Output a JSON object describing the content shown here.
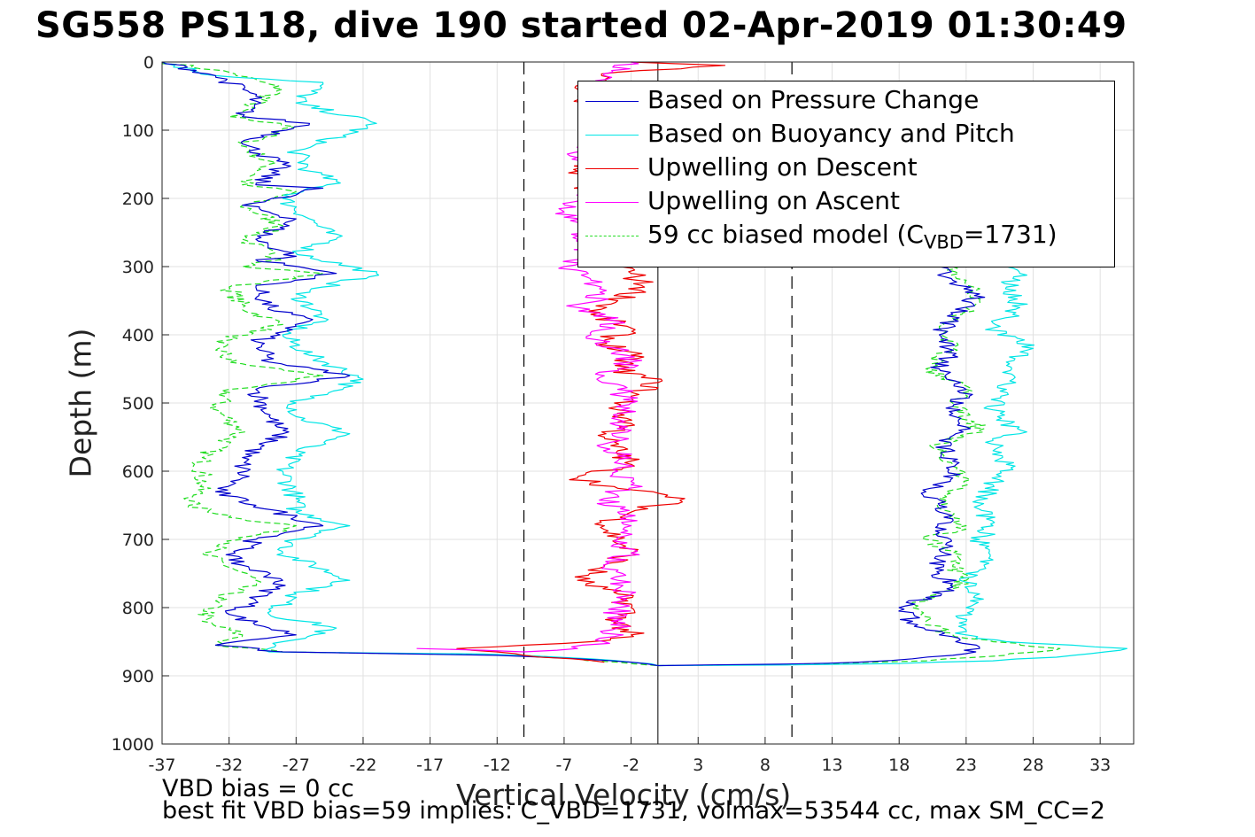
{
  "title": "SG558 PS118, dive 190 started 02-Apr-2019 01:30:49",
  "footer": {
    "line1": "VBD bias = 0 cc",
    "line2": "best fit VBD bias=59 implies: C_VBD=1731, volmax=53544 cc, max SM_CC=2"
  },
  "chart_data": {
    "type": "line",
    "xlabel": "Vertical Velocity (cm/s)",
    "ylabel": "Depth (m)",
    "xlim": [
      -37,
      35.5
    ],
    "ylim": [
      0,
      1000
    ],
    "y_reversed": true,
    "x_ticks": [
      -37,
      -32,
      -27,
      -22,
      -17,
      -12,
      -7,
      -2,
      3,
      8,
      13,
      18,
      23,
      28,
      33
    ],
    "y_ticks": [
      0,
      100,
      200,
      300,
      400,
      500,
      600,
      700,
      800,
      900,
      1000
    ],
    "grid": true,
    "legend_position": "top-right",
    "reference_lines": {
      "dashed_x": [
        -10,
        10
      ],
      "solid_x": [
        0
      ]
    },
    "series": [
      {
        "name": "Based on Pressure Change",
        "color": "#0000cc",
        "descent": [
          [
            -37,
            0
          ],
          [
            -33,
            20
          ],
          [
            -30,
            50
          ],
          [
            -31,
            80
          ],
          [
            -26,
            90
          ],
          [
            -31,
            120
          ],
          [
            -28,
            150
          ],
          [
            -30,
            180
          ],
          [
            -25,
            185
          ],
          [
            -31,
            210
          ],
          [
            -27,
            230
          ],
          [
            -30,
            260
          ],
          [
            -27,
            285
          ],
          [
            -30,
            290
          ],
          [
            -24,
            310
          ],
          [
            -30,
            330
          ],
          [
            -29,
            360
          ],
          [
            -26,
            380
          ],
          [
            -30,
            410
          ],
          [
            -29,
            440
          ],
          [
            -23,
            460
          ],
          [
            -30,
            480
          ],
          [
            -29,
            520
          ],
          [
            -28,
            545
          ],
          [
            -31,
            580
          ],
          [
            -31,
            610
          ],
          [
            -33,
            630
          ],
          [
            -30,
            650
          ],
          [
            -25,
            680
          ],
          [
            -30,
            700
          ],
          [
            -32,
            730
          ],
          [
            -28,
            760
          ],
          [
            -30,
            790
          ],
          [
            -32,
            810
          ],
          [
            -29,
            830
          ],
          [
            -27,
            840
          ],
          [
            -33,
            855
          ],
          [
            -28,
            865
          ],
          [
            -12,
            870
          ],
          [
            -6,
            875
          ],
          [
            -2,
            880
          ],
          [
            0,
            885
          ]
        ],
        "ascent": [
          [
            0,
            885
          ],
          [
            9,
            883
          ],
          [
            15,
            880
          ],
          [
            19,
            875
          ],
          [
            22,
            870
          ],
          [
            24,
            860
          ],
          [
            21,
            840
          ],
          [
            19,
            820
          ],
          [
            18,
            800
          ],
          [
            20,
            785
          ],
          [
            22,
            770
          ],
          [
            21,
            750
          ],
          [
            21,
            730
          ],
          [
            22,
            710
          ],
          [
            21,
            690
          ],
          [
            22,
            670
          ],
          [
            21,
            650
          ],
          [
            20,
            630
          ],
          [
            22,
            610
          ],
          [
            22,
            585
          ],
          [
            21,
            555
          ],
          [
            23,
            535
          ],
          [
            22,
            505
          ],
          [
            23,
            480
          ],
          [
            21,
            450
          ],
          [
            22,
            430
          ],
          [
            21,
            400
          ],
          [
            22,
            370
          ],
          [
            24,
            340
          ],
          [
            22,
            320
          ],
          [
            21,
            300
          ]
        ]
      },
      {
        "name": "Based on Buoyancy and Pitch",
        "color": "#00e5e5",
        "descent": [
          [
            -37,
            0
          ],
          [
            -33,
            20
          ],
          [
            -25,
            30
          ],
          [
            -27,
            60
          ],
          [
            -21,
            90
          ],
          [
            -27,
            130
          ],
          [
            -26,
            160
          ],
          [
            -24,
            175
          ],
          [
            -28,
            200
          ],
          [
            -26,
            230
          ],
          [
            -24,
            260
          ],
          [
            -27,
            280
          ],
          [
            -21,
            310
          ],
          [
            -27,
            340
          ],
          [
            -25,
            375
          ],
          [
            -28,
            400
          ],
          [
            -26,
            430
          ],
          [
            -22,
            465
          ],
          [
            -27,
            500
          ],
          [
            -27,
            520
          ],
          [
            -23,
            545
          ],
          [
            -27,
            570
          ],
          [
            -28,
            600
          ],
          [
            -27,
            640
          ],
          [
            -27,
            660
          ],
          [
            -23,
            680
          ],
          [
            -27,
            700
          ],
          [
            -28,
            720
          ],
          [
            -23,
            760
          ],
          [
            -27,
            780
          ],
          [
            -29,
            810
          ],
          [
            -24,
            830
          ],
          [
            -28,
            850
          ],
          [
            -29,
            865
          ],
          [
            -13,
            868
          ],
          [
            -5,
            875
          ],
          [
            -2,
            880
          ],
          [
            0,
            885
          ]
        ],
        "ascent": [
          [
            0,
            885
          ],
          [
            10,
            884
          ],
          [
            18,
            882
          ],
          [
            25,
            878
          ],
          [
            31,
            870
          ],
          [
            35,
            860
          ],
          [
            26,
            850
          ],
          [
            23,
            840
          ],
          [
            23,
            820
          ],
          [
            23,
            800
          ],
          [
            24,
            780
          ],
          [
            23,
            750
          ],
          [
            25,
            730
          ],
          [
            24,
            700
          ],
          [
            25,
            680
          ],
          [
            24,
            650
          ],
          [
            25,
            620
          ],
          [
            26,
            590
          ],
          [
            25,
            555
          ],
          [
            27,
            545
          ],
          [
            25,
            510
          ],
          [
            26,
            480
          ],
          [
            26,
            440
          ],
          [
            28,
            420
          ],
          [
            25,
            390
          ],
          [
            27,
            360
          ],
          [
            26,
            330
          ],
          [
            27,
            310
          ],
          [
            26,
            300
          ]
        ]
      },
      {
        "name": "Upwelling on Descent",
        "color": "#ee0000",
        "points": [
          [
            -2,
            0
          ],
          [
            5,
            5
          ],
          [
            -3,
            15
          ],
          [
            -6,
            40
          ],
          [
            -5,
            80
          ],
          [
            -4,
            120
          ],
          [
            -6,
            160
          ],
          [
            -5,
            200
          ],
          [
            -4,
            240
          ],
          [
            -3,
            280
          ],
          [
            -2,
            310
          ],
          [
            -1,
            330
          ],
          [
            -3,
            350
          ],
          [
            -5,
            370
          ],
          [
            -2,
            390
          ],
          [
            -4,
            410
          ],
          [
            -2,
            430
          ],
          [
            -3,
            450
          ],
          [
            0,
            470
          ],
          [
            -2,
            490
          ],
          [
            -3,
            510
          ],
          [
            -2,
            530
          ],
          [
            -4,
            550
          ],
          [
            -3,
            570
          ],
          [
            -2,
            590
          ],
          [
            -6,
            610
          ],
          [
            -3,
            625
          ],
          [
            2,
            640
          ],
          [
            -2,
            660
          ],
          [
            -4,
            680
          ],
          [
            -3,
            700
          ],
          [
            -2,
            720
          ],
          [
            -4,
            740
          ],
          [
            -6,
            760
          ],
          [
            -3,
            780
          ],
          [
            -2,
            800
          ],
          [
            -3,
            820
          ],
          [
            -2,
            840
          ],
          [
            -5,
            850
          ],
          [
            -15,
            860
          ],
          [
            -10,
            870
          ],
          [
            -4,
            880
          ]
        ]
      },
      {
        "name": "Upwelling on Ascent",
        "color": "#ff00ff",
        "points": [
          [
            -18,
            860
          ],
          [
            -10,
            865
          ],
          [
            -6,
            860
          ],
          [
            -4,
            850
          ],
          [
            -3,
            830
          ],
          [
            -3,
            800
          ],
          [
            -2,
            780
          ],
          [
            -3,
            760
          ],
          [
            -4,
            740
          ],
          [
            -2,
            720
          ],
          [
            -3,
            700
          ],
          [
            -2,
            680
          ],
          [
            -3,
            660
          ],
          [
            -4,
            640
          ],
          [
            -2,
            620
          ],
          [
            -3,
            600
          ],
          [
            -2,
            580
          ],
          [
            -4,
            560
          ],
          [
            -2,
            540
          ],
          [
            -3,
            520
          ],
          [
            -2,
            500
          ],
          [
            -3,
            480
          ],
          [
            -4,
            460
          ],
          [
            -2,
            440
          ],
          [
            -3,
            420
          ],
          [
            -5,
            400
          ],
          [
            -3,
            380
          ],
          [
            -6,
            360
          ],
          [
            -4,
            340
          ],
          [
            -5,
            320
          ],
          [
            -7,
            300
          ],
          [
            -5,
            280
          ],
          [
            -6,
            260
          ],
          [
            -5,
            240
          ],
          [
            -7,
            220
          ],
          [
            -6,
            200
          ],
          [
            -5,
            180
          ],
          [
            -4,
            160
          ],
          [
            -6,
            140
          ],
          [
            -5,
            120
          ],
          [
            -4,
            100
          ],
          [
            -5,
            60
          ],
          [
            -4,
            20
          ],
          [
            -2,
            0
          ]
        ]
      },
      {
        "name": "59 cc biased model (C_VBD=1731)",
        "color": "#22dd22",
        "dashed": true,
        "descent": [
          [
            -37,
            0
          ],
          [
            -32,
            15
          ],
          [
            -28,
            40
          ],
          [
            -32,
            80
          ],
          [
            -27,
            95
          ],
          [
            -31,
            120
          ],
          [
            -29,
            150
          ],
          [
            -31,
            180
          ],
          [
            -27,
            190
          ],
          [
            -31,
            210
          ],
          [
            -28,
            240
          ],
          [
            -31,
            260
          ],
          [
            -28,
            290
          ],
          [
            -31,
            300
          ],
          [
            -25,
            310
          ],
          [
            -32,
            330
          ],
          [
            -31,
            360
          ],
          [
            -28,
            385
          ],
          [
            -33,
            410
          ],
          [
            -32,
            440
          ],
          [
            -25,
            460
          ],
          [
            -32,
            480
          ],
          [
            -33,
            510
          ],
          [
            -31,
            540
          ],
          [
            -34,
            580
          ],
          [
            -34,
            620
          ],
          [
            -35,
            650
          ],
          [
            -31,
            670
          ],
          [
            -27,
            680
          ],
          [
            -31,
            700
          ],
          [
            -34,
            720
          ],
          [
            -30,
            760
          ],
          [
            -33,
            790
          ],
          [
            -34,
            820
          ],
          [
            -31,
            840
          ],
          [
            -33,
            855
          ],
          [
            -28,
            865
          ],
          [
            -10,
            870
          ],
          [
            -3,
            880
          ],
          [
            0,
            885
          ]
        ],
        "ascent": [
          [
            0,
            885
          ],
          [
            12,
            883
          ],
          [
            20,
            878
          ],
          [
            26,
            870
          ],
          [
            30,
            860
          ],
          [
            25,
            850
          ],
          [
            22,
            840
          ],
          [
            20,
            820
          ],
          [
            19,
            800
          ],
          [
            21,
            780
          ],
          [
            23,
            760
          ],
          [
            22,
            740
          ],
          [
            22,
            720
          ],
          [
            20,
            700
          ],
          [
            23,
            680
          ],
          [
            22,
            660
          ],
          [
            21,
            640
          ],
          [
            23,
            610
          ],
          [
            22,
            590
          ],
          [
            21,
            560
          ],
          [
            24,
            540
          ],
          [
            22,
            500
          ],
          [
            23,
            480
          ],
          [
            20,
            450
          ],
          [
            22,
            420
          ],
          [
            21,
            390
          ],
          [
            24,
            350
          ],
          [
            23,
            320
          ],
          [
            22,
            300
          ]
        ]
      }
    ]
  },
  "legend": {
    "items": [
      {
        "label": "Based on Pressure Change",
        "color": "#0000cc",
        "style": "solid"
      },
      {
        "label": "Based on Buoyancy and Pitch",
        "color": "#00e5e5",
        "style": "solid"
      },
      {
        "label": "Upwelling on Descent",
        "color": "#ee0000",
        "style": "solid"
      },
      {
        "label": "Upwelling on Ascent",
        "color": "#ff00ff",
        "style": "solid"
      },
      {
        "label_main": "59 cc biased model (C",
        "label_sub": "VBD",
        "label_tail": "=1731)",
        "color": "#22dd22",
        "style": "dashed"
      }
    ]
  }
}
